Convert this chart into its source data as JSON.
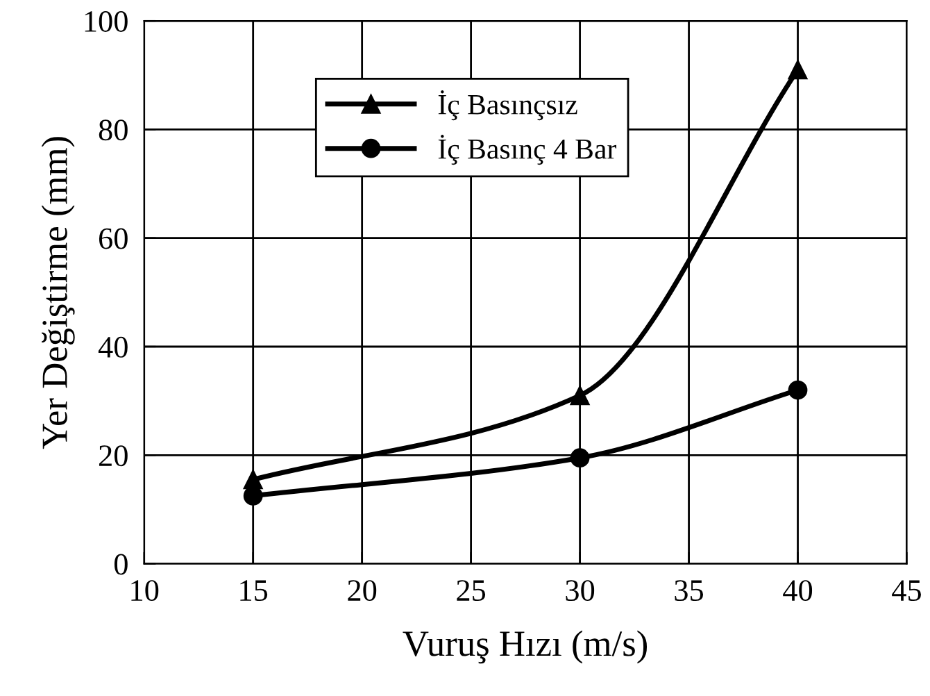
{
  "chart_data": {
    "type": "line",
    "xlabel": "Vuruş Hızı (m/s)",
    "ylabel": "Yer Değiştirme (mm)",
    "x": [
      15,
      30,
      40
    ],
    "series": [
      {
        "name": "İç Basınçsız",
        "color": "#000000",
        "marker": "triangle",
        "values": [
          15.5,
          31,
          91
        ]
      },
      {
        "name": "İç Basınç 4 Bar",
        "color": "#000000",
        "marker": "circle",
        "values": [
          12.5,
          19.5,
          32
        ]
      }
    ],
    "xlim": [
      10,
      45
    ],
    "xticks": [
      10,
      15,
      20,
      25,
      30,
      35,
      40,
      45
    ],
    "ylim": [
      0,
      100
    ],
    "yticks": [
      0,
      20,
      40,
      60,
      80,
      100
    ],
    "grid": true,
    "legend": "top",
    "line_style": "solid"
  }
}
